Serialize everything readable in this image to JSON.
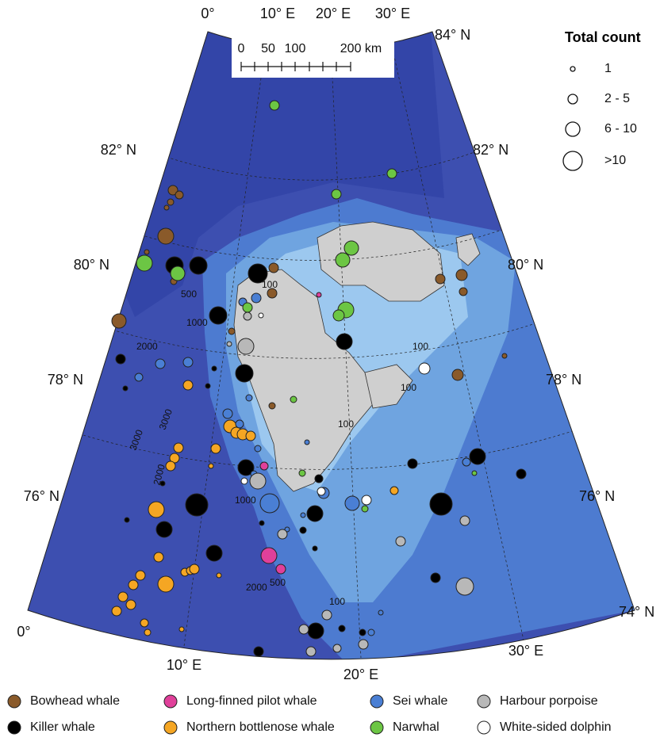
{
  "map": {
    "lat_labels": [
      "84° N",
      "82° N",
      "80° N",
      "78° N",
      "76° N",
      "74° N",
      "82° N",
      "80° N",
      "78° N",
      "76° N"
    ],
    "lon_labels_top": [
      "0°",
      "10° E",
      "20° E",
      "30° E"
    ],
    "lon_labels_bottom": [
      "0°",
      "10° E",
      "20° E",
      "30° E"
    ],
    "contour_labels": [
      "500",
      "1000",
      "2000",
      "3000",
      "3000",
      "2000",
      "1000",
      "2000",
      "500",
      "100",
      "100",
      "100",
      "100",
      "100"
    ]
  },
  "scale_bar": {
    "labels": [
      "0",
      "50",
      "100",
      "200 km"
    ]
  },
  "legend": {
    "title": "Total count",
    "sizes": [
      "1",
      "2 - 5",
      "6 - 10",
      ">10"
    ],
    "species": [
      {
        "name": "Bowhead whale",
        "color": "#8a5a2a"
      },
      {
        "name": "Killer whale",
        "color": "#000000"
      },
      {
        "name": "Long-finned pilot whale",
        "color": "#e0409a"
      },
      {
        "name": "Northern bottlenose whale",
        "color": "#f5a623"
      },
      {
        "name": "Sei whale",
        "color": "#4a7fd4"
      },
      {
        "name": "Narwhal",
        "color": "#6cc644"
      },
      {
        "name": "Harbour porpoise",
        "color": "#b8b8b8"
      },
      {
        "name": "White-sided dolphin",
        "color": "#ffffff"
      }
    ]
  }
}
